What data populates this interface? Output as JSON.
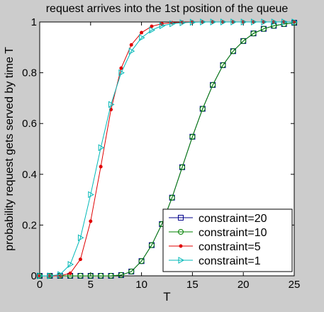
{
  "chart_data": {
    "type": "line",
    "title": "request arrives into the 1st position of the queue",
    "xlabel": "T",
    "ylabel": "probability request gets served by time T",
    "xlim": [
      0,
      25
    ],
    "ylim": [
      0,
      1
    ],
    "xticks": [
      0,
      5,
      10,
      15,
      20,
      25
    ],
    "yticks": [
      0,
      0.2,
      0.4,
      0.6,
      0.8,
      1
    ],
    "xtick_labels": [
      "0",
      "5",
      "10",
      "15",
      "20",
      "25"
    ],
    "ytick_labels": [
      "0",
      "0.2",
      "0.4",
      "0.6",
      "0.8",
      "1"
    ],
    "grid": false,
    "legend_position": "bottom-right",
    "x": [
      0,
      1,
      2,
      3,
      4,
      5,
      6,
      7,
      8,
      9,
      10,
      11,
      12,
      13,
      14,
      15,
      16,
      17,
      18,
      19,
      20,
      21,
      22,
      23,
      24,
      25
    ],
    "series": [
      {
        "name": "constraint=20",
        "color": "#00008b",
        "marker": "square",
        "values": [
          0,
          0,
          0,
          0,
          0,
          0,
          0,
          0,
          0.003,
          0.017,
          0.058,
          0.121,
          0.204,
          0.308,
          0.428,
          0.548,
          0.658,
          0.752,
          0.83,
          0.885,
          0.925,
          0.955,
          0.973,
          0.985,
          0.992,
          0.997
        ]
      },
      {
        "name": "constraint=10",
        "color": "#008000",
        "marker": "circle",
        "values": [
          0,
          0,
          0,
          0,
          0,
          0,
          0,
          0,
          0.003,
          0.017,
          0.058,
          0.121,
          0.204,
          0.308,
          0.428,
          0.548,
          0.658,
          0.752,
          0.83,
          0.885,
          0.925,
          0.955,
          0.973,
          0.985,
          0.992,
          0.997
        ]
      },
      {
        "name": "constraint=5",
        "color": "#e00000",
        "marker": "dot",
        "values": [
          0,
          0,
          0,
          0.01,
          0.065,
          0.215,
          0.43,
          0.655,
          0.818,
          0.91,
          0.958,
          0.983,
          0.993,
          0.997,
          0.999,
          1,
          1,
          1,
          1,
          1,
          1,
          1,
          1,
          1,
          1,
          1
        ]
      },
      {
        "name": "constraint=1",
        "color": "#00b8b8",
        "marker": "triangle-right",
        "values": [
          0,
          0,
          0.005,
          0.045,
          0.15,
          0.32,
          0.505,
          0.675,
          0.8,
          0.885,
          0.938,
          0.968,
          0.985,
          0.993,
          0.997,
          0.999,
          1,
          1,
          1,
          1,
          1,
          1,
          1,
          1,
          1,
          1
        ]
      }
    ]
  }
}
